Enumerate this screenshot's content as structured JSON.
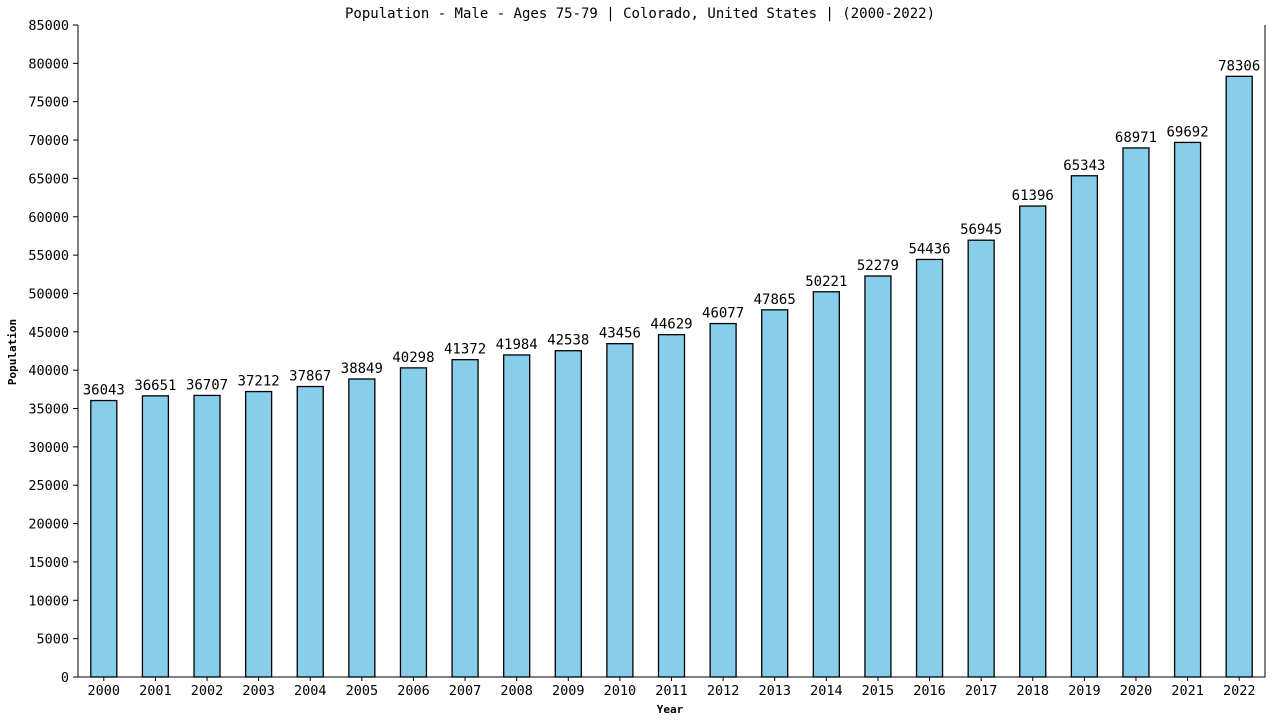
{
  "chart_data": {
    "type": "bar",
    "title": "Population - Male - Ages 75-79 | Colorado, United States |  (2000-2022)",
    "xlabel": "Year",
    "ylabel": "Population",
    "ylim": [
      0,
      85000
    ],
    "ytick_step": 5000,
    "grid": false,
    "legend": "none",
    "bar_color": "#87ceeb",
    "categories": [
      "2000",
      "2001",
      "2002",
      "2003",
      "2004",
      "2005",
      "2006",
      "2007",
      "2008",
      "2009",
      "2010",
      "2011",
      "2012",
      "2013",
      "2014",
      "2015",
      "2016",
      "2017",
      "2018",
      "2019",
      "2020",
      "2021",
      "2022"
    ],
    "values": [
      36043,
      36651,
      36707,
      37212,
      37867,
      38849,
      40298,
      41372,
      41984,
      42538,
      43456,
      44629,
      46077,
      47865,
      50221,
      52279,
      54436,
      56945,
      61396,
      65343,
      68971,
      69692,
      78306
    ]
  }
}
